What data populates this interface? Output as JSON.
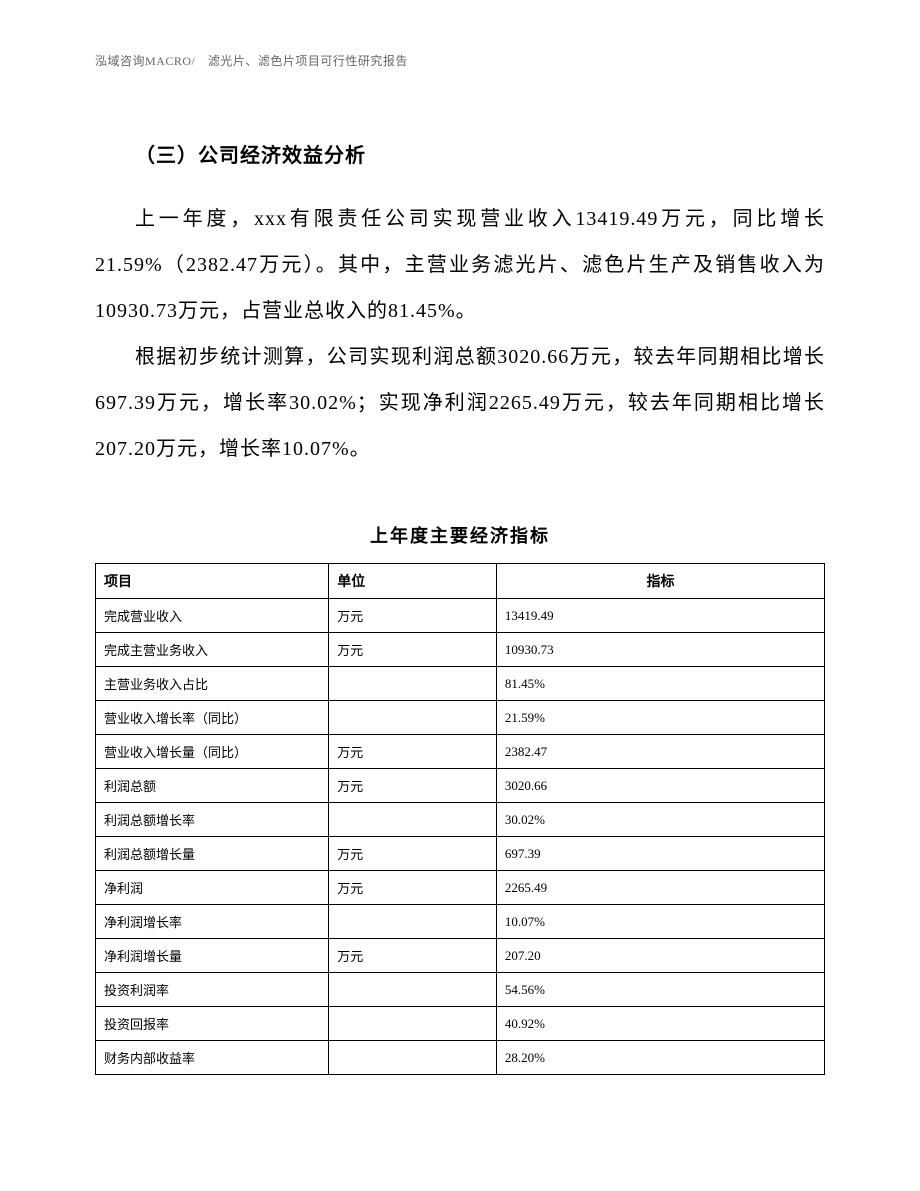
{
  "header": {
    "text": "泓域咨询MACRO/ 滤光片、滤色片项目可行性研究报告"
  },
  "section": {
    "title": "（三）公司经济效益分析",
    "paragraph1": "上一年度，xxx有限责任公司实现营业收入13419.49万元，同比增长21.59%（2382.47万元）。其中，主营业务滤光片、滤色片生产及销售收入为10930.73万元，占营业总收入的81.45%。",
    "paragraph2": "根据初步统计测算，公司实现利润总额3020.66万元，较去年同期相比增长697.39万元，增长率30.02%；实现净利润2265.49万元，较去年同期相比增长207.20万元，增长率10.07%。"
  },
  "table": {
    "title": "上年度主要经济指标",
    "header": {
      "item": "项目",
      "unit": "单位",
      "value": "指标"
    },
    "rows": [
      {
        "item": "完成营业收入",
        "unit": "万元",
        "value": "13419.49"
      },
      {
        "item": "完成主营业务收入",
        "unit": "万元",
        "value": "10930.73"
      },
      {
        "item": "主营业务收入占比",
        "unit": "",
        "value": "81.45%"
      },
      {
        "item": "营业收入增长率（同比）",
        "unit": "",
        "value": "21.59%"
      },
      {
        "item": "营业收入增长量（同比）",
        "unit": "万元",
        "value": "2382.47"
      },
      {
        "item": "利润总额",
        "unit": "万元",
        "value": "3020.66"
      },
      {
        "item": "利润总额增长率",
        "unit": "",
        "value": "30.02%"
      },
      {
        "item": "利润总额增长量",
        "unit": "万元",
        "value": "697.39"
      },
      {
        "item": "净利润",
        "unit": "万元",
        "value": "2265.49"
      },
      {
        "item": "净利润增长率",
        "unit": "",
        "value": "10.07%"
      },
      {
        "item": "净利润增长量",
        "unit": "万元",
        "value": "207.20"
      },
      {
        "item": "投资利润率",
        "unit": "",
        "value": "54.56%"
      },
      {
        "item": "投资回报率",
        "unit": "",
        "value": "40.92%"
      },
      {
        "item": "财务内部收益率",
        "unit": "",
        "value": "28.20%"
      }
    ]
  }
}
